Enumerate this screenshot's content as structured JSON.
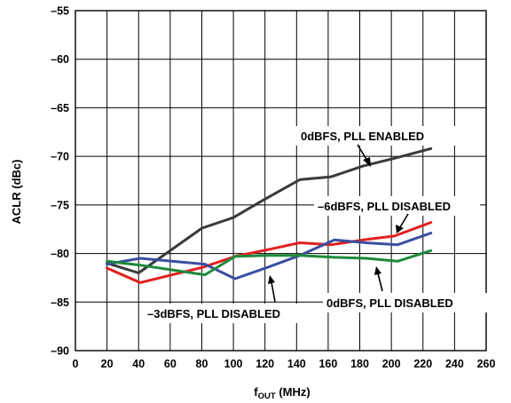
{
  "chart_data": {
    "type": "line",
    "xlabel_main": "f",
    "xlabel_sub": "OUT",
    "xlabel_unit": " (MHz)",
    "ylabel": "ACLR (dBc)",
    "xlim": [
      0,
      260
    ],
    "ylim": [
      -90,
      -55
    ],
    "xticks": [
      0,
      20,
      40,
      60,
      80,
      100,
      120,
      140,
      160,
      180,
      200,
      220,
      240,
      260
    ],
    "yticks": [
      -55,
      -60,
      -65,
      -70,
      -75,
      -80,
      -85,
      -90
    ],
    "xtick_labels": [
      "0",
      "20",
      "40",
      "60",
      "80",
      "100",
      "120",
      "140",
      "160",
      "180",
      "200",
      "220",
      "240",
      "260"
    ],
    "ytick_labels": [
      "–55",
      "–60",
      "–65",
      "–70",
      "–75",
      "–80",
      "–85",
      "–90"
    ],
    "grid": true,
    "series": [
      {
        "color": "#3a3a3a",
        "x": [
          20,
          40,
          80,
          100,
          120,
          142,
          162,
          182,
          202,
          225
        ],
        "y": [
          -81.0,
          -82.0,
          -77.4,
          -76.3,
          -74.4,
          -72.4,
          -72.1,
          -71.0,
          -70.2,
          -69.2
        ]
      },
      {
        "color": "#e0201e",
        "x": [
          20,
          41,
          81,
          101,
          122,
          142,
          162,
          182,
          202,
          225
        ],
        "y": [
          -81.5,
          -83.0,
          -81.4,
          -80.3,
          -79.6,
          -78.9,
          -79.1,
          -78.6,
          -78.2,
          -76.8
        ]
      },
      {
        "color": "#3a4fa0",
        "x": [
          20,
          41,
          82,
          101,
          122,
          142,
          164,
          184,
          204,
          225
        ],
        "y": [
          -81.1,
          -80.5,
          -81.1,
          -82.6,
          -81.4,
          -80.2,
          -78.6,
          -78.9,
          -79.1,
          -77.9
        ]
      },
      {
        "color": "#1e8a3a",
        "x": [
          20,
          41,
          82,
          101,
          122,
          142,
          164,
          184,
          204,
          225
        ],
        "y": [
          -80.8,
          -81.2,
          -82.2,
          -80.3,
          -80.2,
          -80.2,
          -80.4,
          -80.5,
          -80.8,
          -79.7
        ]
      }
    ],
    "annotations": [
      {
        "text": "0dBFS, PLL ENABLED"
      },
      {
        "text": "–6dBFS, PLL DISABLED"
      },
      {
        "text": "0dBFS, PLL DISABLED"
      },
      {
        "text": "–3dBFS, PLL DISABLED"
      }
    ]
  }
}
